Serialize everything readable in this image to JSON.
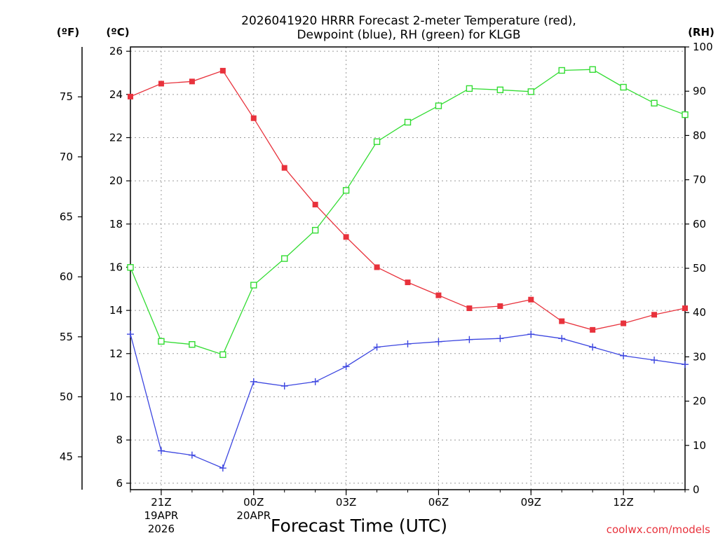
{
  "chart_data": {
    "type": "line",
    "title_lines": [
      "2026041920 HRRR Forecast 2-meter Temperature (red),",
      "Dewpoint (blue), RH (green) for KLGB"
    ],
    "xlabel": "Forecast Time (UTC)",
    "credit": "coolwx.com/models",
    "units": {
      "fahrenheit": "(ºF)",
      "celsius": "(ºC)",
      "rh": "(RH)"
    },
    "x_hours": [
      0,
      1,
      2,
      3,
      4,
      5,
      6,
      7,
      8,
      9,
      10,
      11,
      12,
      13,
      14,
      15,
      16,
      17,
      18
    ],
    "x_ticks": [
      {
        "hour": 1,
        "label": "21Z",
        "sub1": "19APR",
        "sub2": "2026"
      },
      {
        "hour": 4,
        "label": "00Z",
        "sub1": "20APR",
        "sub2": ""
      },
      {
        "hour": 7,
        "label": "03Z",
        "sub1": "",
        "sub2": ""
      },
      {
        "hour": 10,
        "label": "06Z",
        "sub1": "",
        "sub2": ""
      },
      {
        "hour": 13,
        "label": "09Z",
        "sub1": "",
        "sub2": ""
      },
      {
        "hour": 16,
        "label": "12Z",
        "sub1": "",
        "sub2": ""
      }
    ],
    "xlim": [
      0,
      18
    ],
    "ylim_celsius": [
      5.7,
      26.2
    ],
    "ylim_rh": [
      0,
      100
    ],
    "ylim_fahrenheit": [
      42.26,
      79.16
    ],
    "yticks_celsius": [
      6,
      8,
      10,
      12,
      14,
      16,
      18,
      20,
      22,
      24,
      26
    ],
    "yticks_rh": [
      0,
      10,
      20,
      30,
      40,
      50,
      60,
      70,
      80,
      90,
      100
    ],
    "yticks_fahrenheit": [
      45,
      50,
      55,
      60,
      65,
      70,
      75
    ],
    "grid": true,
    "series": [
      {
        "name": "Temperature",
        "axis": "celsius",
        "color": "#e8323c",
        "marker": "square-filled",
        "values": [
          23.9,
          24.5,
          24.6,
          25.1,
          22.9,
          20.6,
          18.9,
          17.4,
          16.0,
          15.3,
          14.7,
          14.1,
          14.2,
          14.5,
          13.5,
          13.1,
          13.4,
          13.8,
          14.1
        ]
      },
      {
        "name": "Dewpoint",
        "axis": "celsius",
        "color": "#3c46e0",
        "marker": "plus",
        "values": [
          12.9,
          7.5,
          7.3,
          6.7,
          10.7,
          10.5,
          10.7,
          11.4,
          12.3,
          12.45,
          12.55,
          12.65,
          12.7,
          12.9,
          12.7,
          12.3,
          11.9,
          11.7,
          11.5
        ]
      },
      {
        "name": "RH",
        "axis": "rh",
        "color": "#32dc32",
        "marker": "square-open",
        "values": [
          50.2,
          33.5,
          32.8,
          30.5,
          46.2,
          52.2,
          58.6,
          67.6,
          78.6,
          83.0,
          86.7,
          90.6,
          90.3,
          89.9,
          94.7,
          94.9,
          90.9,
          87.3,
          84.7
        ]
      }
    ]
  }
}
